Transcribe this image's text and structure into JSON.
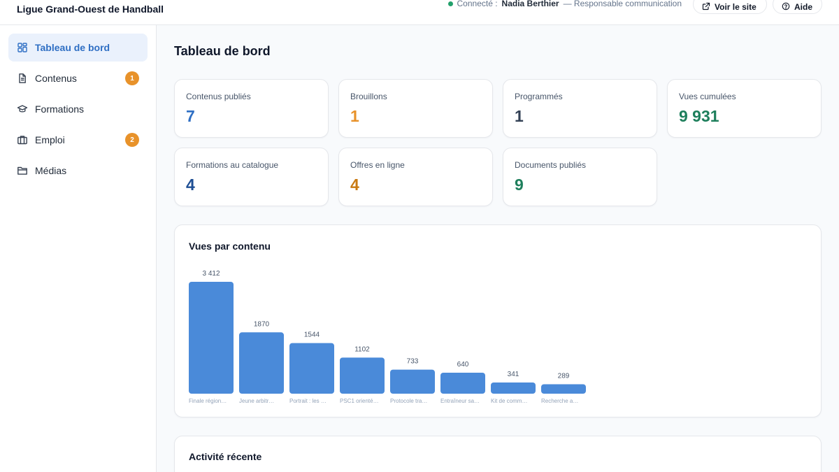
{
  "header": {
    "brand": "Ligue Grand-Ouest de Handball",
    "status_prefix": "Connecté :",
    "user_name": "Nadia Berthier",
    "user_role": "— Responsable communication",
    "view_site_label": "Voir le site",
    "help_label": "Aide"
  },
  "sidebar": {
    "items": [
      {
        "label": "Tableau de bord",
        "icon": "dashboard-icon",
        "active": true
      },
      {
        "label": "Contenus",
        "icon": "document-icon",
        "badge": "1"
      },
      {
        "label": "Formations",
        "icon": "graduation-cap-icon"
      },
      {
        "label": "Emploi",
        "icon": "briefcase-icon",
        "badge": "2"
      },
      {
        "label": "Médias",
        "icon": "folder-icon"
      }
    ]
  },
  "main": {
    "title": "Tableau de bord",
    "stats": [
      {
        "label": "Contenus publiés",
        "value": "7"
      },
      {
        "label": "Brouillons",
        "value": "1"
      },
      {
        "label": "Programmés",
        "value": "1"
      },
      {
        "label": "Vues cumulées",
        "value": "9 931"
      },
      {
        "label": "Formations au catalogue",
        "value": "4"
      },
      {
        "label": "Offres en ligne",
        "value": "4"
      },
      {
        "label": "Documents publiés",
        "value": "9"
      }
    ],
    "chart_title": "Vues par contenu",
    "activity_title": "Activité récente"
  },
  "colors": {
    "accent": "#2f6fc4",
    "bar": "#4a8ad9",
    "badge": "#e8922a",
    "status_online": "#22a06b"
  },
  "chart_data": {
    "type": "bar",
    "title": "Vues par contenu",
    "categories": [
      "Finale région…",
      "Jeune arbitr…",
      "Portrait : les …",
      "PSC1 orienté…",
      "Protocole tra…",
      "Entraîneur sa…",
      "Kit de comm…",
      "Recherche a…"
    ],
    "value_labels": [
      "3 412",
      "1870",
      "1544",
      "1102",
      "733",
      "640",
      "341",
      "289"
    ],
    "values": [
      3412,
      1870,
      1544,
      1102,
      733,
      640,
      341,
      289
    ],
    "ylim": [
      0,
      3412
    ],
    "grid": false,
    "legend": "none"
  }
}
